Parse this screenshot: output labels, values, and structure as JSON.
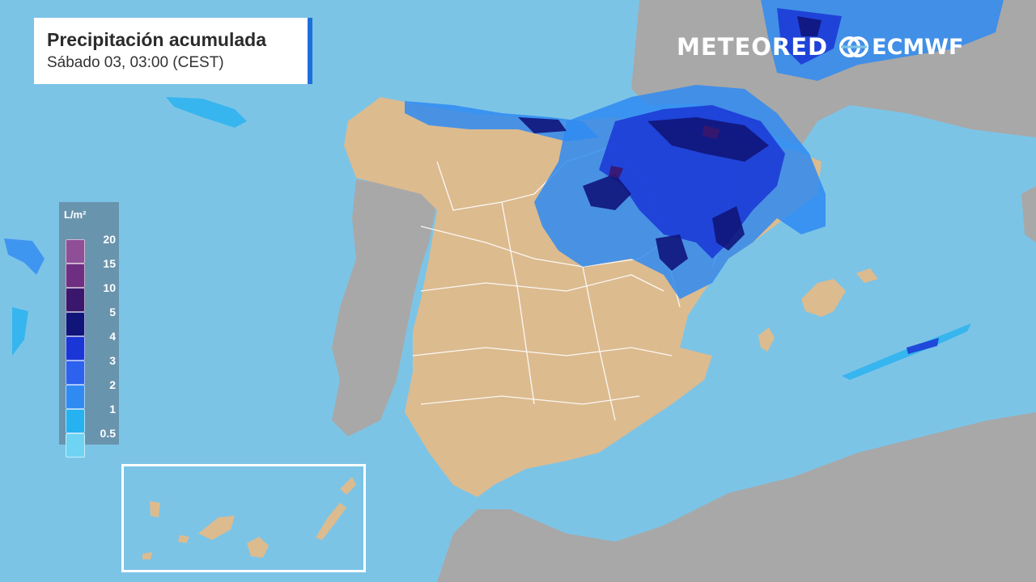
{
  "title": "Precipitación acumulada",
  "subtitle": "Sábado 03, 03:00 (CEST)",
  "brand": {
    "primary": "METEORED",
    "secondary": "ECMWF"
  },
  "legend": {
    "unit": "L/m²",
    "levels": [
      {
        "label": "20",
        "color": "#8e4f96"
      },
      {
        "label": "15",
        "color": "#6e2f82"
      },
      {
        "label": "10",
        "color": "#3a176c"
      },
      {
        "label": "5",
        "color": "#10157a"
      },
      {
        "label": "4",
        "color": "#1a36d6"
      },
      {
        "label": "3",
        "color": "#2d62ee"
      },
      {
        "label": "2",
        "color": "#2f8bf2"
      },
      {
        "label": "1",
        "color": "#26b2f0"
      },
      {
        "label": "0.5",
        "color": "#6fd3f3"
      }
    ]
  },
  "colors": {
    "sea": "#7cc4e6",
    "spain_land": "#dcbb8f",
    "foreign_land": "#a8a8a8",
    "border": "#ffffff"
  }
}
